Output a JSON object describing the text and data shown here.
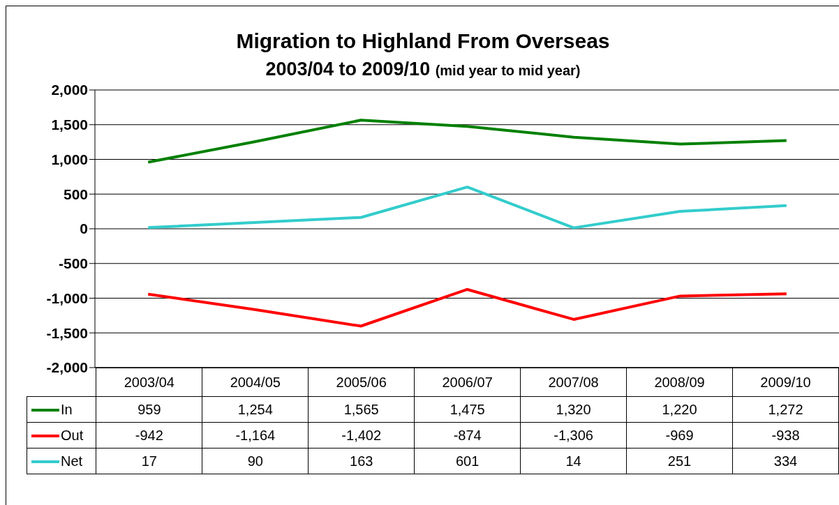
{
  "chart_data": {
    "type": "line",
    "title": "Migration to Highland From Overseas",
    "subtitle": "2003/04 to 2009/10",
    "annotations": [
      "(mid year to mid year)"
    ],
    "categories": [
      "2003/04",
      "2004/05",
      "2005/06",
      "2006/07",
      "2007/08",
      "2008/09",
      "2009/10"
    ],
    "series": [
      {
        "name": "In",
        "color": "#008000",
        "values": [
          959,
          1254,
          1565,
          1475,
          1320,
          1220,
          1272
        ],
        "value_labels": [
          "959",
          "1,254",
          "1,565",
          "1,475",
          "1,320",
          "1,220",
          "1,272"
        ]
      },
      {
        "name": "Out",
        "color": "#ff0000",
        "values": [
          -942,
          -1164,
          -1402,
          -874,
          -1306,
          -969,
          -938
        ],
        "value_labels": [
          "-942",
          "-1,164",
          "-1,402",
          "-874",
          "-1,306",
          "-969",
          "-938"
        ]
      },
      {
        "name": "Net",
        "color": "#33cccc",
        "values": [
          17,
          90,
          163,
          601,
          14,
          251,
          334
        ],
        "value_labels": [
          "17",
          "90",
          "163",
          "601",
          "14",
          "251",
          "334"
        ]
      }
    ],
    "ylim": [
      -2000,
      2000
    ],
    "yticks": [
      {
        "value": -2000,
        "label": "-2,000"
      },
      {
        "value": -1500,
        "label": "-1,500"
      },
      {
        "value": -1000,
        "label": "-1,000"
      },
      -500,
      0,
      500,
      {
        "value": 1000,
        "label": "1,000"
      },
      {
        "value": 1500,
        "label": "1,500"
      },
      {
        "value": 2000,
        "label": "2,000"
      }
    ],
    "grid": "y",
    "legend": "bottom",
    "marker": "none",
    "line_style": "solid"
  }
}
